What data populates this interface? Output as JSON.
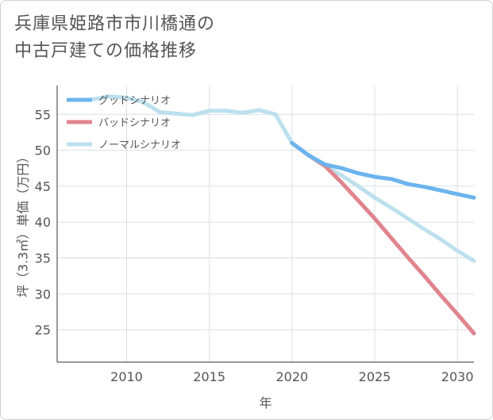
{
  "chart_data": {
    "type": "line",
    "title": [
      "兵庫県姫路市市川橋通の",
      "中古戸建ての価格推移"
    ],
    "xlabel": "年",
    "ylabel": "坪（3.3㎡）単価（万円）",
    "xlim": [
      2005.8,
      2031
    ],
    "ylim": [
      20.5,
      59
    ],
    "xticks": [
      2010,
      2015,
      2020,
      2025,
      2030
    ],
    "yticks": [
      25,
      30,
      35,
      40,
      45,
      50,
      55
    ],
    "grid": true,
    "legend_position": "top-left",
    "series": [
      {
        "name": "グッドシナリオ",
        "color": "#6cb4ee",
        "x": [
          2020,
          2021,
          2022,
          2023,
          2024,
          2025,
          2026,
          2027,
          2028,
          2029,
          2030,
          2031
        ],
        "y": [
          51.0,
          49.3,
          48.0,
          47.5,
          46.8,
          46.3,
          46.0,
          45.3,
          44.9,
          44.4,
          43.9,
          43.4
        ]
      },
      {
        "name": "バッドシナリオ",
        "color": "#e0848e",
        "x": [
          2020,
          2021,
          2022,
          2023,
          2024,
          2025,
          2026,
          2027,
          2028,
          2029,
          2030,
          2031
        ],
        "y": [
          51.0,
          49.3,
          47.8,
          45.5,
          43.0,
          40.5,
          37.8,
          35.1,
          32.5,
          29.8,
          27.2,
          24.5
        ]
      },
      {
        "name": "ノーマルシナリオ",
        "color": "#bde0ee",
        "x": [
          2008,
          2009,
          2010,
          2011,
          2012,
          2013,
          2014,
          2015,
          2016,
          2017,
          2018,
          2019,
          2020,
          2021,
          2022,
          2023,
          2024,
          2025,
          2026,
          2027,
          2028,
          2029,
          2030,
          2031
        ],
        "y": [
          57.1,
          57.5,
          57.3,
          56.7,
          55.3,
          55.1,
          54.9,
          55.5,
          55.5,
          55.2,
          55.6,
          55.0,
          51.0,
          49.3,
          47.8,
          46.5,
          45.0,
          43.4,
          42.0,
          40.5,
          39.0,
          37.6,
          36.0,
          34.6
        ]
      }
    ]
  }
}
